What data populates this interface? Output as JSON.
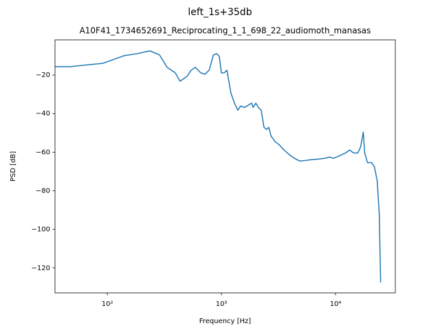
{
  "chart_data": {
    "type": "line",
    "title": "left_1s+35db",
    "subtitle": "A10F41_1734652691_Reciprocating_1_1_698_22_audiomoth_manasas",
    "xlabel": "Frequency [Hz]",
    "ylabel": "PSD [dB]",
    "xscale": "log",
    "xlim": [
      34.8,
      33400
    ],
    "ylim": [
      -132.9,
      -1.8
    ],
    "xticks": [
      {
        "value": 100,
        "label": "10²"
      },
      {
        "value": 1000,
        "label": "10³"
      },
      {
        "value": 10000,
        "label": "10⁴"
      }
    ],
    "yticks": [
      {
        "value": -120,
        "label": "−120"
      },
      {
        "value": -100,
        "label": "−100"
      },
      {
        "value": -80,
        "label": "−80"
      },
      {
        "value": -60,
        "label": "−60"
      },
      {
        "value": -40,
        "label": "−40"
      },
      {
        "value": -20,
        "label": "−20"
      }
    ],
    "x": [
      34.8,
      47,
      92,
      140,
      184,
      236,
      287,
      334,
      394,
      434,
      500,
      543,
      590,
      659,
      718,
      781,
      850,
      908,
      958,
      1000,
      1057,
      1117,
      1213,
      1318,
      1393,
      1472,
      1600,
      1740,
      1840,
      1893,
      2000,
      2110,
      2230,
      2360,
      2490,
      2600,
      2730,
      2960,
      3200,
      3500,
      3900,
      4360,
      4860,
      5420,
      6060,
      6950,
      7990,
      8900,
      9560,
      10880,
      12230,
      13260,
      14420,
      15640,
      16540,
      17500,
      18000,
      19050,
      20690,
      21880,
      23150,
      24160,
      24840
    ],
    "series": [
      {
        "name": "PSD",
        "color": "#1f77b4",
        "values": [
          -15.7,
          -15.7,
          -13.9,
          -10,
          -8.9,
          -7.5,
          -9.6,
          -16,
          -18.9,
          -23.2,
          -20.7,
          -17.5,
          -16,
          -18.9,
          -19.6,
          -17.5,
          -9.6,
          -8.9,
          -10.4,
          -18.9,
          -18.9,
          -17.5,
          -29.6,
          -35.4,
          -38.2,
          -36.1,
          -36.8,
          -35.4,
          -34.6,
          -36.8,
          -34.6,
          -36.8,
          -38.2,
          -47.1,
          -48.2,
          -47.1,
          -51.8,
          -54.6,
          -56.1,
          -58.6,
          -61.1,
          -63.2,
          -64.6,
          -64.3,
          -63.9,
          -63.6,
          -63.2,
          -62.5,
          -63.2,
          -61.8,
          -60.4,
          -58.9,
          -60.4,
          -60.4,
          -57.5,
          -49.6,
          -60.4,
          -65.4,
          -65.4,
          -67.5,
          -74.6,
          -91.8,
          -127.5
        ]
      }
    ]
  }
}
